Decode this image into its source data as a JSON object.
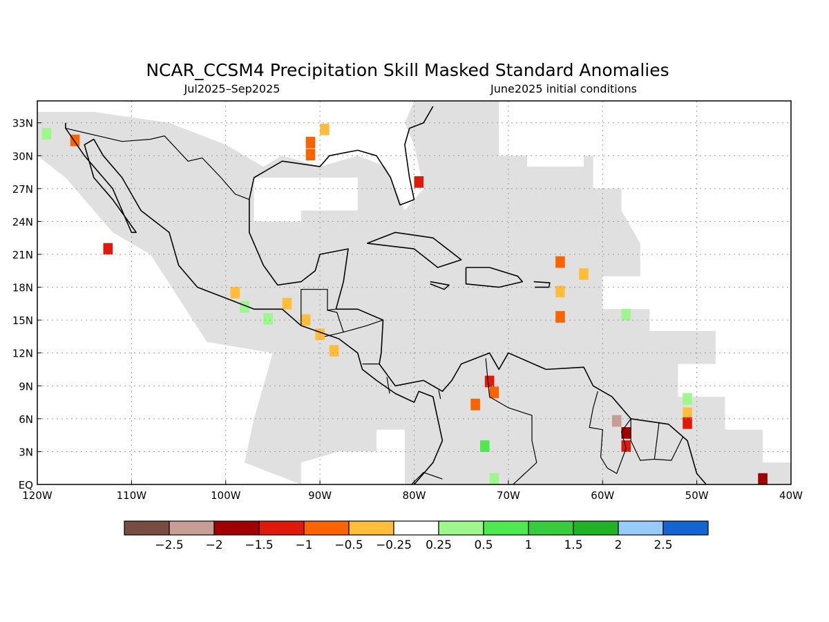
{
  "title": "NCAR_CCSM4 Precipitation Skill Masked Standard Anomalies",
  "subtitle_left": "Jul2025–Sep2025",
  "subtitle_right": "June2025 initial conditions",
  "map": {
    "lon_range": [
      -120,
      -40
    ],
    "lat_range": [
      0,
      35
    ],
    "x_ticks": [
      {
        "lon": -120,
        "label": "120W"
      },
      {
        "lon": -110,
        "label": "110W"
      },
      {
        "lon": -100,
        "label": "100W"
      },
      {
        "lon": -90,
        "label": "90W"
      },
      {
        "lon": -80,
        "label": "80W"
      },
      {
        "lon": -70,
        "label": "70W"
      },
      {
        "lon": -60,
        "label": "60W"
      },
      {
        "lon": -50,
        "label": "50W"
      },
      {
        "lon": -40,
        "label": "40W"
      }
    ],
    "y_ticks": [
      {
        "lat": 0,
        "label": "EQ"
      },
      {
        "lat": 3,
        "label": "3N"
      },
      {
        "lat": 6,
        "label": "6N"
      },
      {
        "lat": 9,
        "label": "9N"
      },
      {
        "lat": 12,
        "label": "12N"
      },
      {
        "lat": 15,
        "label": "15N"
      },
      {
        "lat": 18,
        "label": "18N"
      },
      {
        "lat": 21,
        "label": "21N"
      },
      {
        "lat": 24,
        "label": "24N"
      },
      {
        "lat": 27,
        "label": "27N"
      },
      {
        "lat": 30,
        "label": "30N"
      },
      {
        "lat": 33,
        "label": "33N"
      }
    ],
    "grid": true,
    "skill_mask_color": "#e0e0e0",
    "skill_mask": [
      [
        [
          -120,
          34
        ],
        [
          -114,
          34
        ],
        [
          -106,
          33
        ],
        [
          -100,
          31
        ],
        [
          -96,
          29
        ],
        [
          -94,
          30
        ],
        [
          -90,
          29
        ],
        [
          -86,
          30
        ],
        [
          -83,
          29
        ],
        [
          -81,
          25
        ],
        [
          -79,
          27
        ],
        [
          -80,
          31
        ],
        [
          -81,
          33
        ],
        [
          -80,
          35
        ],
        [
          -71,
          35
        ],
        [
          -71,
          30
        ],
        [
          -61,
          30
        ],
        [
          -61,
          27
        ],
        [
          -58,
          27
        ],
        [
          -58,
          25
        ],
        [
          -56,
          22
        ],
        [
          -56,
          19
        ],
        [
          -60,
          19
        ],
        [
          -60,
          16
        ],
        [
          -55,
          16
        ],
        [
          -55,
          14
        ],
        [
          -48,
          14
        ],
        [
          -48,
          11
        ],
        [
          -52,
          11
        ],
        [
          -52,
          8
        ],
        [
          -47,
          8
        ],
        [
          -47,
          5
        ],
        [
          -43,
          5
        ],
        [
          -43,
          2
        ],
        [
          -40,
          2
        ],
        [
          -40,
          0
        ],
        [
          -82,
          0
        ],
        [
          -82,
          3
        ],
        [
          -88,
          3
        ],
        [
          -92,
          2
        ],
        [
          -92,
          0
        ],
        [
          -98,
          2
        ],
        [
          -97,
          6
        ],
        [
          -95,
          12
        ],
        [
          -102,
          13
        ],
        [
          -105,
          17
        ],
        [
          -108,
          21
        ],
        [
          -112,
          23
        ],
        [
          -117,
          28
        ],
        [
          -120,
          30
        ]
      ]
    ],
    "unmasked_holes": [
      [
        [
          -97,
          24
        ],
        [
          -92,
          24
        ],
        [
          -92,
          25
        ],
        [
          -86,
          25
        ],
        [
          -86,
          28
        ],
        [
          -97,
          28
        ]
      ],
      [
        [
          -68,
          33
        ],
        [
          -62,
          33
        ],
        [
          -62,
          29
        ],
        [
          -68,
          29
        ]
      ],
      [
        [
          -84,
          5
        ],
        [
          -81,
          5
        ],
        [
          -81,
          0
        ],
        [
          -84,
          0
        ]
      ]
    ],
    "coastlines": [
      [
        [
          -117,
          33
        ],
        [
          -117,
          32.5
        ],
        [
          -115,
          30
        ],
        [
          -112,
          27
        ],
        [
          -110,
          23
        ],
        [
          -109.5,
          23
        ],
        [
          -112,
          26
        ],
        [
          -114,
          28
        ],
        [
          -115,
          31
        ],
        [
          -114,
          31.5
        ],
        [
          -113,
          30
        ],
        [
          -111,
          28
        ],
        [
          -109,
          25
        ],
        [
          -106,
          23
        ],
        [
          -105,
          20
        ],
        [
          -103,
          18
        ],
        [
          -100,
          17
        ],
        [
          -97,
          16
        ],
        [
          -94,
          16
        ],
        [
          -92,
          14.5
        ],
        [
          -88,
          13.3
        ],
        [
          -86,
          12
        ],
        [
          -85.5,
          10.5
        ],
        [
          -84,
          9.5
        ],
        [
          -82,
          8.3
        ],
        [
          -80,
          7.5
        ],
        [
          -79.5,
          8.5
        ],
        [
          -78,
          8
        ],
        [
          -77.5,
          6
        ],
        [
          -77,
          4
        ],
        [
          -78,
          2
        ],
        [
          -80,
          0
        ]
      ],
      [
        [
          -97.5,
          26
        ],
        [
          -97.5,
          23
        ],
        [
          -96,
          20
        ],
        [
          -94.5,
          18.2
        ],
        [
          -92,
          18.5
        ],
        [
          -90.5,
          19.5
        ],
        [
          -90,
          21
        ],
        [
          -87,
          21.5
        ],
        [
          -87.5,
          18.5
        ],
        [
          -88.3,
          16
        ],
        [
          -86,
          16
        ],
        [
          -83.3,
          15
        ],
        [
          -83.5,
          12
        ],
        [
          -83.7,
          11
        ],
        [
          -82,
          9
        ],
        [
          -79,
          9.5
        ],
        [
          -77,
          8.5
        ],
        [
          -76,
          9.5
        ],
        [
          -75,
          11
        ],
        [
          -72,
          12
        ],
        [
          -71,
          10.5
        ],
        [
          -70,
          12
        ],
        [
          -66,
          10.5
        ],
        [
          -62,
          10.7
        ],
        [
          -61,
          9
        ],
        [
          -59,
          8
        ],
        [
          -57,
          6
        ],
        [
          -53,
          5.5
        ],
        [
          -51,
          4
        ],
        [
          -50,
          1
        ],
        [
          -49,
          0
        ]
      ],
      [
        [
          -97.5,
          26
        ],
        [
          -97,
          28
        ],
        [
          -94,
          29.5
        ],
        [
          -90,
          29
        ],
        [
          -89,
          30
        ],
        [
          -86,
          30.5
        ],
        [
          -84,
          30
        ],
        [
          -82.5,
          28
        ],
        [
          -81.5,
          25.5
        ],
        [
          -80,
          26
        ],
        [
          -80.5,
          28
        ],
        [
          -81,
          31
        ],
        [
          -80.5,
          32.5
        ],
        [
          -79,
          33
        ],
        [
          -78,
          34.5
        ]
      ],
      [
        [
          -85,
          22
        ],
        [
          -82,
          23
        ],
        [
          -78,
          22.5
        ],
        [
          -75,
          20.5
        ],
        [
          -77.5,
          19.8
        ],
        [
          -80,
          21.5
        ],
        [
          -85,
          22
        ]
      ],
      [
        [
          -74.5,
          19.8
        ],
        [
          -72,
          19.8
        ],
        [
          -69,
          19
        ],
        [
          -68.5,
          18.5
        ],
        [
          -71,
          18
        ],
        [
          -74.5,
          18.3
        ],
        [
          -74.5,
          19.8
        ]
      ],
      [
        [
          -78.3,
          18.5
        ],
        [
          -76.3,
          18.2
        ],
        [
          -76.8,
          17.8
        ],
        [
          -78.3,
          18.3
        ]
      ],
      [
        [
          -67.3,
          18.5
        ],
        [
          -65.6,
          18.4
        ],
        [
          -65.7,
          18
        ],
        [
          -67.2,
          18
        ]
      ]
    ],
    "borders": [
      [
        [
          -117,
          32.5
        ],
        [
          -111,
          31.3
        ],
        [
          -108,
          31.5
        ],
        [
          -106.5,
          31.8
        ],
        [
          -104,
          29.5
        ],
        [
          -102.5,
          29.8
        ],
        [
          -100.5,
          28
        ],
        [
          -99,
          26.5
        ],
        [
          -97.5,
          26
        ]
      ],
      [
        [
          -92,
          14.5
        ],
        [
          -92,
          17.8
        ],
        [
          -91,
          17.8
        ],
        [
          -89.2,
          17.8
        ],
        [
          -89.2,
          15.9
        ],
        [
          -88.3,
          16
        ]
      ],
      [
        [
          -89.2,
          15.9
        ],
        [
          -88.2,
          15.7
        ],
        [
          -87.5,
          13.9
        ],
        [
          -89.5,
          13.5
        ]
      ],
      [
        [
          -87.5,
          13.9
        ],
        [
          -85,
          14.5
        ],
        [
          -83.3,
          15
        ]
      ],
      [
        [
          -85.5,
          11
        ],
        [
          -83.7,
          11
        ]
      ],
      [
        [
          -82.9,
          9.8
        ],
        [
          -82.6,
          8.3
        ]
      ],
      [
        [
          -77.4,
          8.6
        ],
        [
          -77.2,
          7.8
        ]
      ],
      [
        [
          -72.4,
          11.5
        ],
        [
          -72,
          8
        ],
        [
          -70,
          7
        ],
        [
          -67.5,
          6.3
        ],
        [
          -67.5,
          4
        ],
        [
          -67,
          2
        ],
        [
          -69.5,
          0
        ]
      ],
      [
        [
          -60.5,
          8.5
        ],
        [
          -61,
          7
        ],
        [
          -61.4,
          5.2
        ],
        [
          -60,
          5
        ],
        [
          -60.2,
          2.5
        ],
        [
          -59.5,
          1.5
        ],
        [
          -58.5,
          1
        ],
        [
          -57.5,
          3.3
        ],
        [
          -58,
          4.8
        ],
        [
          -57,
          6
        ]
      ],
      [
        [
          -57,
          6
        ],
        [
          -57,
          4
        ],
        [
          -56,
          2.2
        ],
        [
          -54.5,
          2.3
        ],
        [
          -54,
          5.7
        ]
      ],
      [
        [
          -54.5,
          2.3
        ],
        [
          -52.7,
          2.2
        ],
        [
          -51.5,
          4.3
        ]
      ],
      [
        [
          -80.3,
          0
        ],
        [
          -79,
          1.1
        ],
        [
          -77,
          0.5
        ]
      ]
    ],
    "anomaly_cells": [
      {
        "lon": -116,
        "lat": 31.4,
        "value": -1
      },
      {
        "lon": -91,
        "lat": 31.2,
        "value": -1
      },
      {
        "lon": -91,
        "lat": 30.1,
        "value": -1
      },
      {
        "lon": -89.5,
        "lat": 32.4,
        "value": -0.5
      },
      {
        "lon": -79.5,
        "lat": 27.6,
        "value": -1.5
      },
      {
        "lon": -112.5,
        "lat": 21.5,
        "value": -1.5
      },
      {
        "lon": -99,
        "lat": 17.5,
        "value": -0.5
      },
      {
        "lon": -93.5,
        "lat": 16.5,
        "value": -0.5
      },
      {
        "lon": -91.5,
        "lat": 15,
        "value": -0.5
      },
      {
        "lon": -90,
        "lat": 13.7,
        "value": -0.5
      },
      {
        "lon": -88.5,
        "lat": 12.2,
        "value": -0.5
      },
      {
        "lon": -64.5,
        "lat": 20.3,
        "value": -1
      },
      {
        "lon": -62,
        "lat": 19.2,
        "value": -0.5
      },
      {
        "lon": -64.5,
        "lat": 17.6,
        "value": -0.5
      },
      {
        "lon": -64.5,
        "lat": 15.3,
        "value": -1
      },
      {
        "lon": -72,
        "lat": 9.4,
        "value": -1.5
      },
      {
        "lon": -71.5,
        "lat": 8.4,
        "value": -1
      },
      {
        "lon": -73.5,
        "lat": 7.3,
        "value": -1
      },
      {
        "lon": -57.5,
        "lat": 4.7,
        "value": -2
      },
      {
        "lon": -57.5,
        "lat": 3.5,
        "value": -1.5
      },
      {
        "lon": -58.5,
        "lat": 5.8,
        "value": -2.5
      },
      {
        "lon": -51,
        "lat": 6.5,
        "value": -0.5
      },
      {
        "lon": -51,
        "lat": 5.6,
        "value": -1.5
      },
      {
        "lon": -43,
        "lat": 0.5,
        "value": -2
      },
      {
        "lon": -119,
        "lat": 32,
        "value": 0.25
      },
      {
        "lon": -98,
        "lat": 16.2,
        "value": 0.25
      },
      {
        "lon": -95.5,
        "lat": 15.1,
        "value": 0.25
      },
      {
        "lon": -57.5,
        "lat": 15.5,
        "value": 0.25
      },
      {
        "lon": -51,
        "lat": 7.8,
        "value": 0.25
      },
      {
        "lon": -71.5,
        "lat": 0.5,
        "value": 0.25
      },
      {
        "lon": -72.5,
        "lat": 3.5,
        "value": 0.5
      }
    ]
  },
  "legend": {
    "colors": [
      "#774c43",
      "#c69e95",
      "#a00000",
      "#e01a0a",
      "#fa6400",
      "#ffbd3b",
      "#ffffff",
      "#9ef78c",
      "#4ee84f",
      "#36cc3c",
      "#1fb325",
      "#96cbfa",
      "#1464d2"
    ],
    "tick_labels": [
      "−2.5",
      "−2",
      "−1.5",
      "−1",
      "−0.5",
      "−0.25",
      "0.25",
      "0.5",
      "1",
      "1.5",
      "2",
      "2.5"
    ]
  }
}
